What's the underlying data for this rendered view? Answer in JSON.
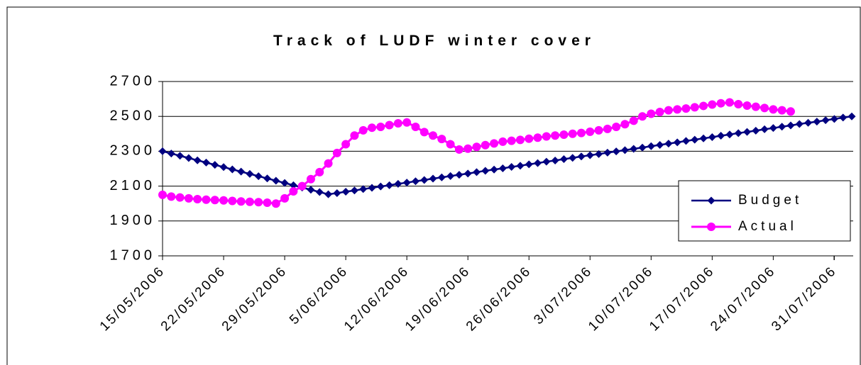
{
  "chart_data": {
    "type": "line",
    "title": "Track of LUDF winter cover",
    "categories": [
      "15/05/2006",
      null,
      null,
      null,
      null,
      null,
      null,
      "22/05/2006",
      null,
      null,
      null,
      null,
      null,
      null,
      "29/05/2006",
      null,
      null,
      null,
      null,
      null,
      null,
      "5/06/2006",
      null,
      null,
      null,
      null,
      null,
      null,
      "12/06/2006",
      null,
      null,
      null,
      null,
      null,
      null,
      "19/06/2006",
      null,
      null,
      null,
      null,
      null,
      null,
      "26/06/2006",
      null,
      null,
      null,
      null,
      null,
      null,
      "3/07/2006",
      null,
      null,
      null,
      null,
      null,
      null,
      "10/07/2006",
      null,
      null,
      null,
      null,
      null,
      null,
      "17/07/2006",
      null,
      null,
      null,
      null,
      null,
      null,
      "24/07/2006",
      null,
      null,
      null,
      null,
      null,
      null,
      "31/07/2006",
      null,
      null
    ],
    "series": [
      {
        "name": "Budget",
        "color": "#000080",
        "values": [
          2300,
          2287,
          2274,
          2261,
          2248,
          2235,
          2222,
          2209,
          2196,
          2183,
          2170,
          2157,
          2144,
          2131,
          2118,
          2105,
          2092,
          2079,
          2066,
          2053,
          2060,
          2068,
          2075,
          2083,
          2090,
          2098,
          2105,
          2113,
          2120,
          2128,
          2135,
          2143,
          2150,
          2158,
          2165,
          2172,
          2180,
          2188,
          2195,
          2202,
          2210,
          2217,
          2225,
          2232,
          2240,
          2247,
          2255,
          2262,
          2270,
          2277,
          2284,
          2292,
          2299,
          2306,
          2314,
          2321,
          2329,
          2336,
          2344,
          2351,
          2359,
          2366,
          2374,
          2381,
          2389,
          2396,
          2404,
          2411,
          2418,
          2426,
          2433,
          2441,
          2448,
          2456,
          2463,
          2470,
          2478,
          2485,
          2493,
          2500
        ]
      },
      {
        "name": "Actual",
        "color": "#ff00ff",
        "values": [
          2050,
          2040,
          2035,
          2030,
          2025,
          2022,
          2020,
          2018,
          2015,
          2012,
          2010,
          2008,
          2005,
          2000,
          2030,
          2070,
          2100,
          2140,
          2180,
          2230,
          2290,
          2340,
          2390,
          2420,
          2435,
          2440,
          2450,
          2460,
          2465,
          2440,
          2410,
          2390,
          2370,
          2340,
          2310,
          2315,
          2325,
          2335,
          2345,
          2355,
          2360,
          2365,
          2372,
          2378,
          2385,
          2390,
          2395,
          2400,
          2405,
          2412,
          2420,
          2428,
          2440,
          2455,
          2475,
          2500,
          2515,
          2525,
          2535,
          2540,
          2545,
          2552,
          2560,
          2568,
          2575,
          2580,
          2570,
          2562,
          2555,
          2548,
          2540,
          2535,
          2528,
          null,
          null,
          null,
          null,
          null,
          null,
          null
        ]
      }
    ],
    "ylim": [
      1700,
      2700
    ],
    "yticks": [
      1700,
      1900,
      2100,
      2300,
      2500,
      2700
    ],
    "grid": true,
    "legend": "right"
  }
}
